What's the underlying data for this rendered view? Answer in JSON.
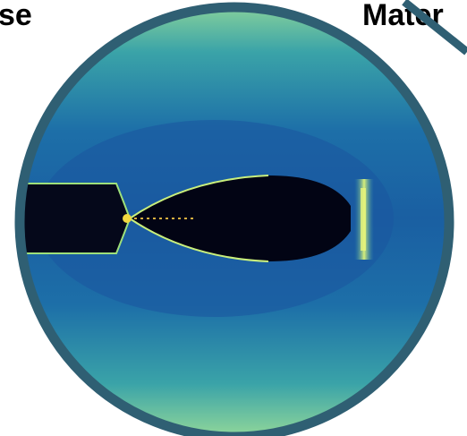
{
  "labels": {
    "left": "se",
    "right": "Mater"
  }
}
